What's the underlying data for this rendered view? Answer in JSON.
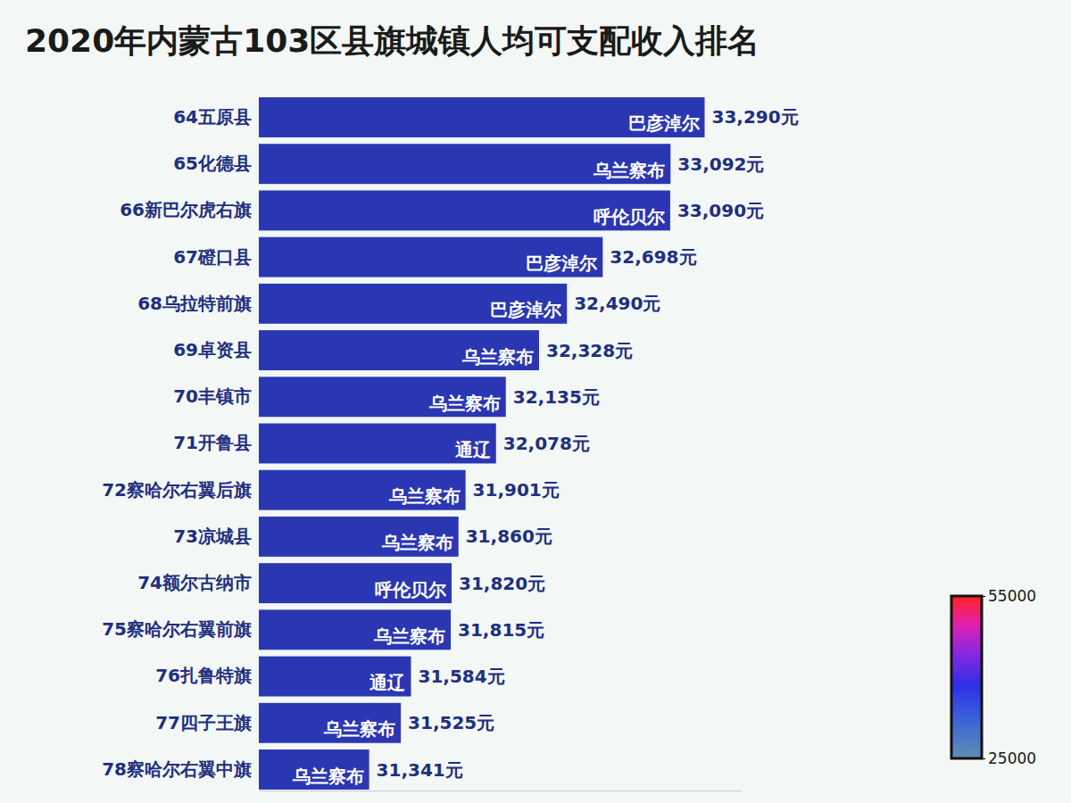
{
  "chart_data": {
    "type": "bar",
    "orientation": "horizontal",
    "title": "2020年内蒙古103区县旗城镇人均可支配收入排名",
    "categories": [
      "64五原县",
      "65化德县",
      "66新巴尔虎右旗",
      "67磴口县",
      "68乌拉特前旗",
      "69卓资县",
      "70丰镇市",
      "71开鲁县",
      "72察哈尔右翼后旗",
      "73凉城县",
      "74额尔古纳市",
      "75察哈尔右翼前旗",
      "76扎鲁特旗",
      "77四子王旗",
      "78察哈尔右翼中旗"
    ],
    "regions": [
      "巴彦淖尔",
      "乌兰察布",
      "呼伦贝尔",
      "巴彦淖尔",
      "巴彦淖尔",
      "乌兰察布",
      "乌兰察布",
      "通辽",
      "乌兰察布",
      "乌兰察布",
      "呼伦贝尔",
      "乌兰察布",
      "通辽",
      "乌兰察布",
      "乌兰察布"
    ],
    "values": [
      33290,
      33092,
      33090,
      32698,
      32490,
      32328,
      32135,
      32078,
      31901,
      31860,
      31820,
      31815,
      31584,
      31525,
      31341
    ],
    "value_labels": [
      "33,290元",
      "33,092元",
      "33,090元",
      "32,698元",
      "32,490元",
      "32,328元",
      "32,135元",
      "32,078元",
      "31,901元",
      "31,860元",
      "31,820元",
      "31,815元",
      "31,584元",
      "31,525元",
      "31,341元"
    ],
    "color": "#2b37b2",
    "xlim": [
      30700,
      33500
    ],
    "xticks": [],
    "tick_labels": false,
    "data_labels": true,
    "color_range": [
      25000,
      55000
    ],
    "color_ticks": [
      25000,
      55000
    ]
  }
}
